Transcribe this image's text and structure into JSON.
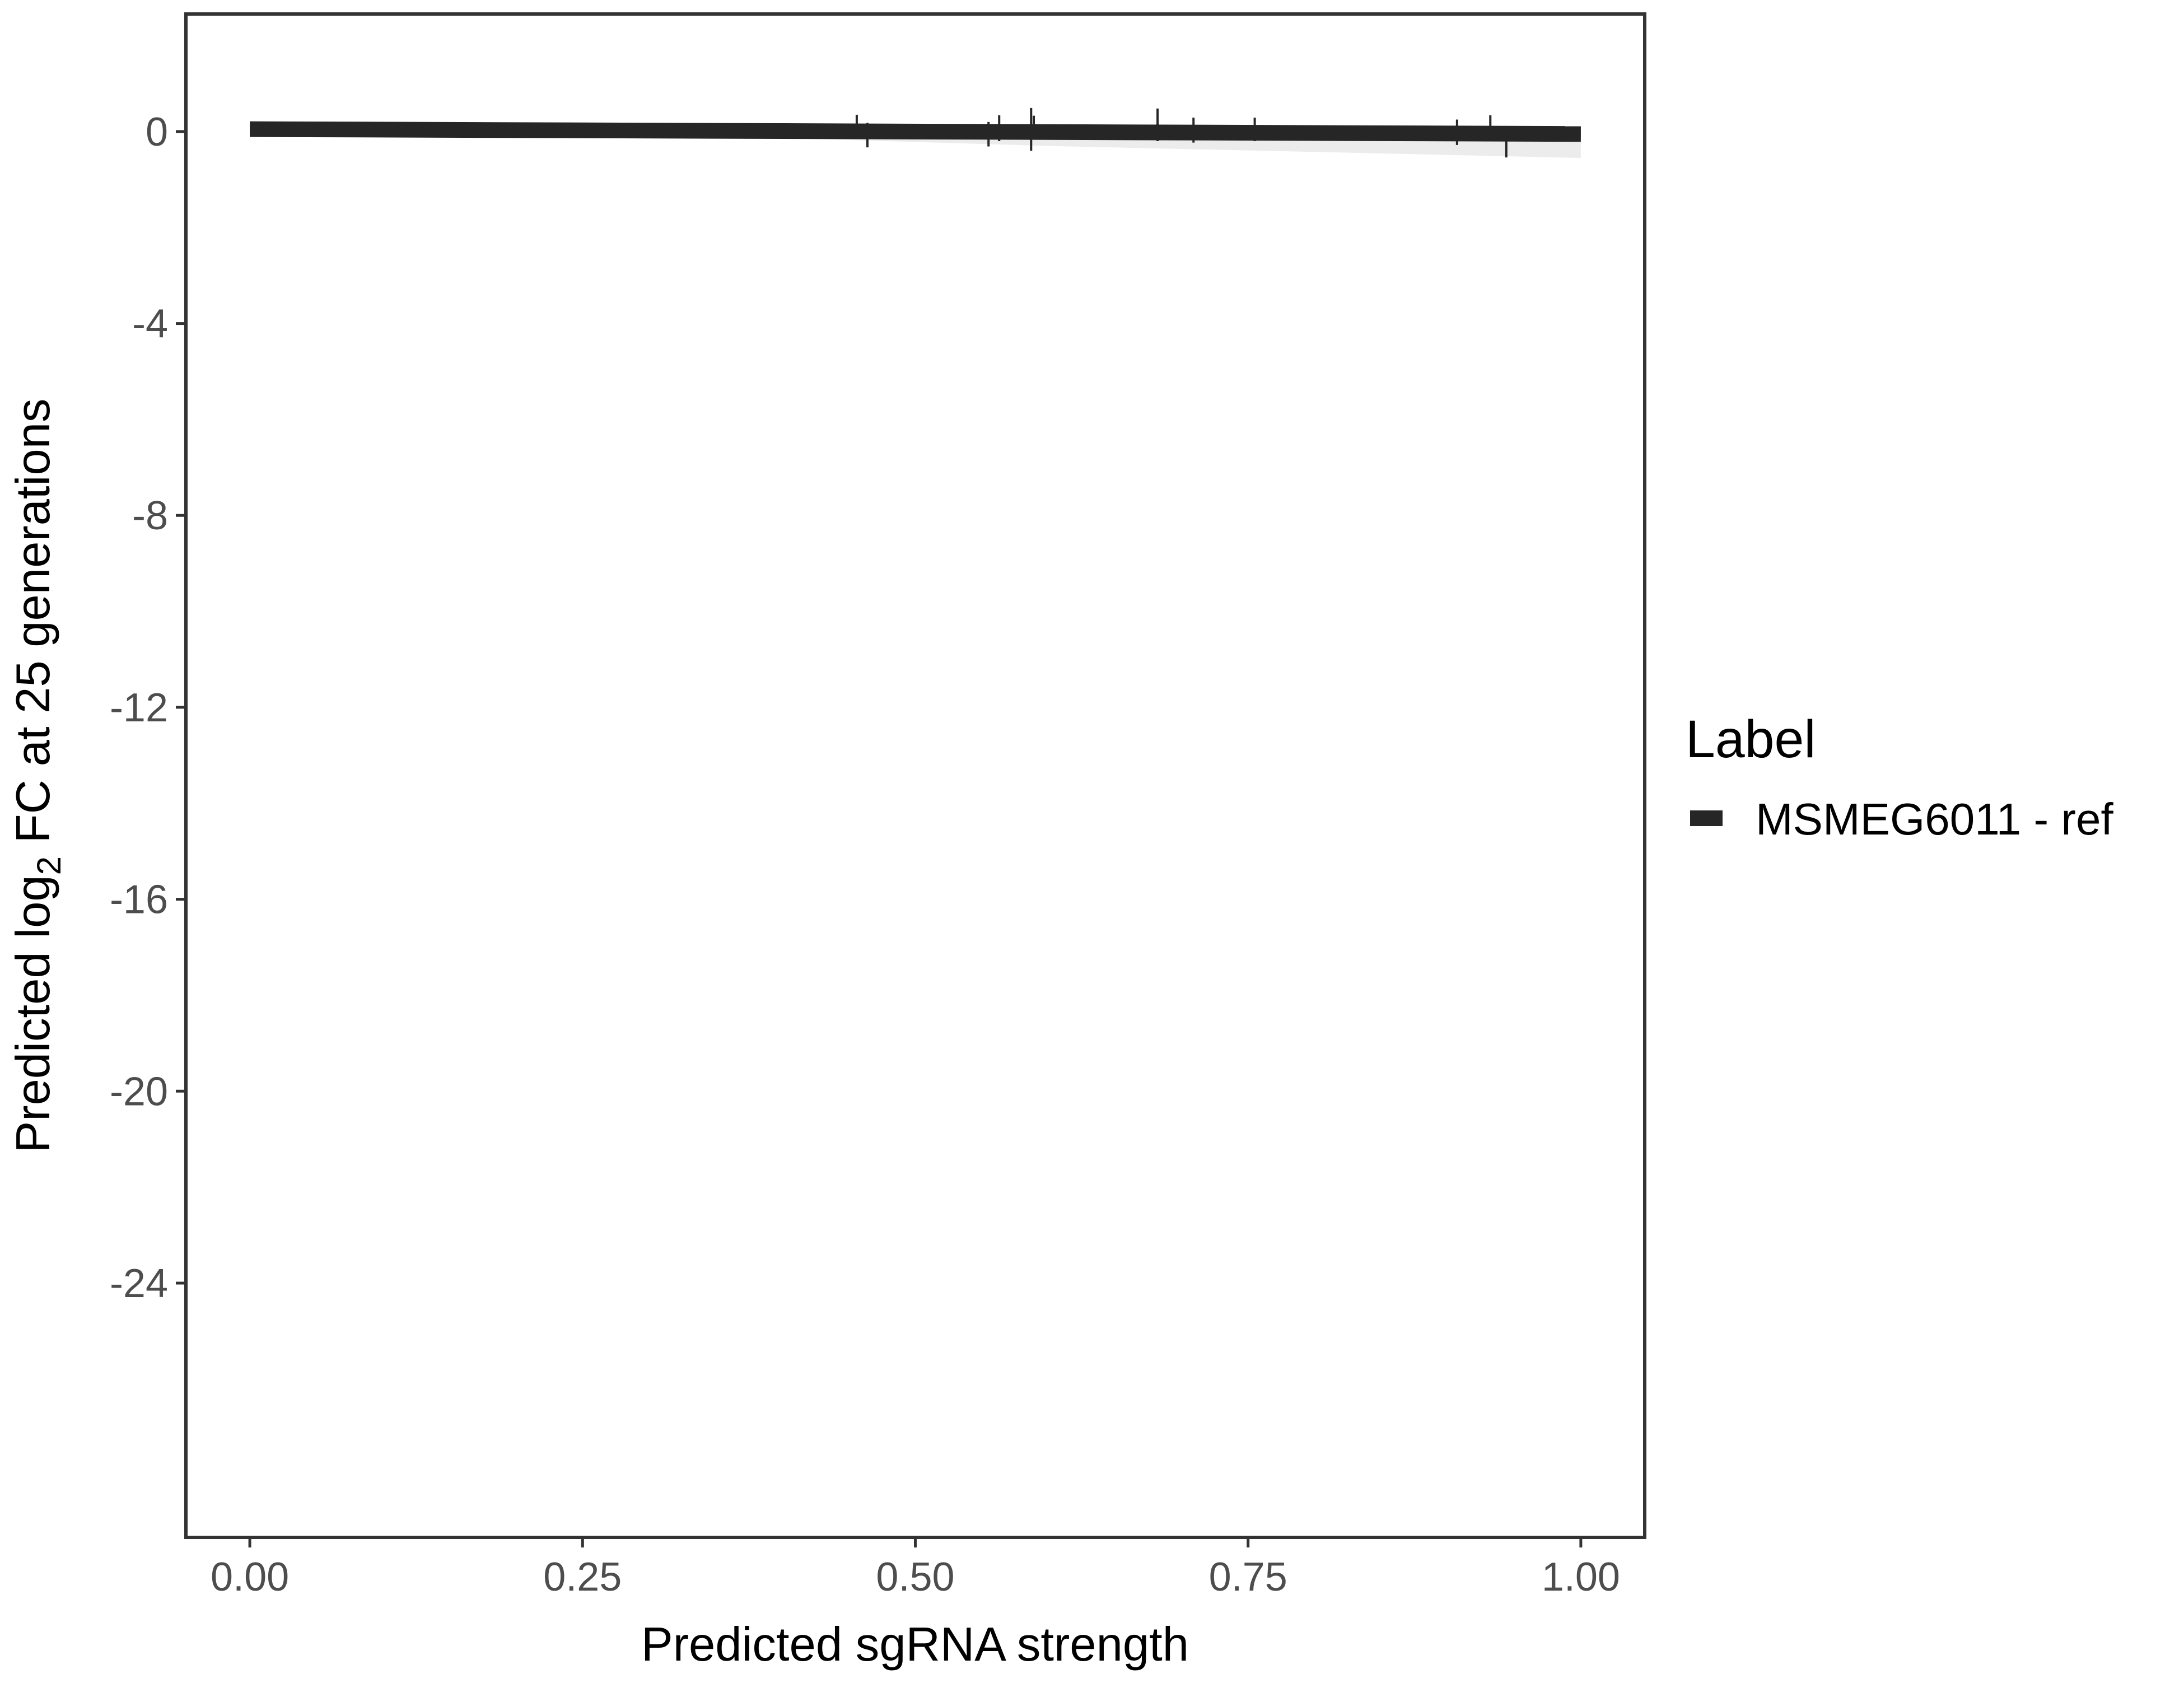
{
  "chart_data": {
    "type": "line",
    "title": "",
    "xlabel": "Predicted sgRNA strength",
    "ylabel_parts": [
      "Predicted  log",
      "2",
      " FC at 25 generations"
    ],
    "xlim": [
      -0.048,
      1.048
    ],
    "ylim": [
      -29.3,
      2.45
    ],
    "x_ticks": [
      0,
      0.25,
      0.5,
      0.75,
      1.0
    ],
    "x_tick_labels": [
      "0.00",
      "0.25",
      "0.50",
      "0.75",
      "1.00"
    ],
    "y_ticks": [
      0,
      -4,
      -8,
      -12,
      -16,
      -20,
      -24
    ],
    "y_tick_labels": [
      "0",
      "-4",
      "-8",
      "-12",
      "-16",
      "-20",
      "-24"
    ],
    "grid": false,
    "legend": {
      "title": "Label",
      "position": "right",
      "entries": [
        "MSMEG6011 - ref"
      ]
    },
    "colors": {
      "series": "#262626",
      "ribbon": "#d9d9d9",
      "frame": "#333333",
      "text": "#4d4d4d"
    },
    "fit_line": {
      "name": "MSMEG6011 - ref",
      "x": [
        0,
        1
      ],
      "y": [
        0.05,
        -0.05
      ]
    },
    "ribbon": {
      "x": [
        0,
        0.3,
        0.6,
        1.0
      ],
      "upper": [
        0.1,
        0.05,
        0.02,
        0.0
      ],
      "lower": [
        0.0,
        -0.05,
        -0.3,
        -0.55
      ]
    },
    "points": [
      {
        "x": 0.456,
        "y": 0.05,
        "ymin": -0.1,
        "ymax": 0.35
      },
      {
        "x": 0.464,
        "y": -0.07,
        "ymin": -0.33,
        "ymax": 0.18
      },
      {
        "x": 0.555,
        "y": -0.05,
        "ymin": -0.31,
        "ymax": 0.2
      },
      {
        "x": 0.563,
        "y": 0.05,
        "ymin": -0.2,
        "ymax": 0.34
      },
      {
        "x": 0.587,
        "y": 0.05,
        "ymin": -0.4,
        "ymax": 0.49
      },
      {
        "x": 0.589,
        "y": 0.1,
        "ymin": -0.15,
        "ymax": 0.33
      },
      {
        "x": 0.682,
        "y": 0.1,
        "ymin": -0.2,
        "ymax": 0.48
      },
      {
        "x": 0.709,
        "y": 0.0,
        "ymin": -0.23,
        "ymax": 0.29
      },
      {
        "x": 0.755,
        "y": 0.0,
        "ymin": -0.2,
        "ymax": 0.29
      },
      {
        "x": 0.907,
        "y": 0.0,
        "ymin": -0.28,
        "ymax": 0.25
      },
      {
        "x": 0.932,
        "y": 0.05,
        "ymin": -0.2,
        "ymax": 0.34
      },
      {
        "x": 0.944,
        "y": -0.15,
        "ymin": -0.54,
        "ymax": 0.1
      }
    ]
  }
}
